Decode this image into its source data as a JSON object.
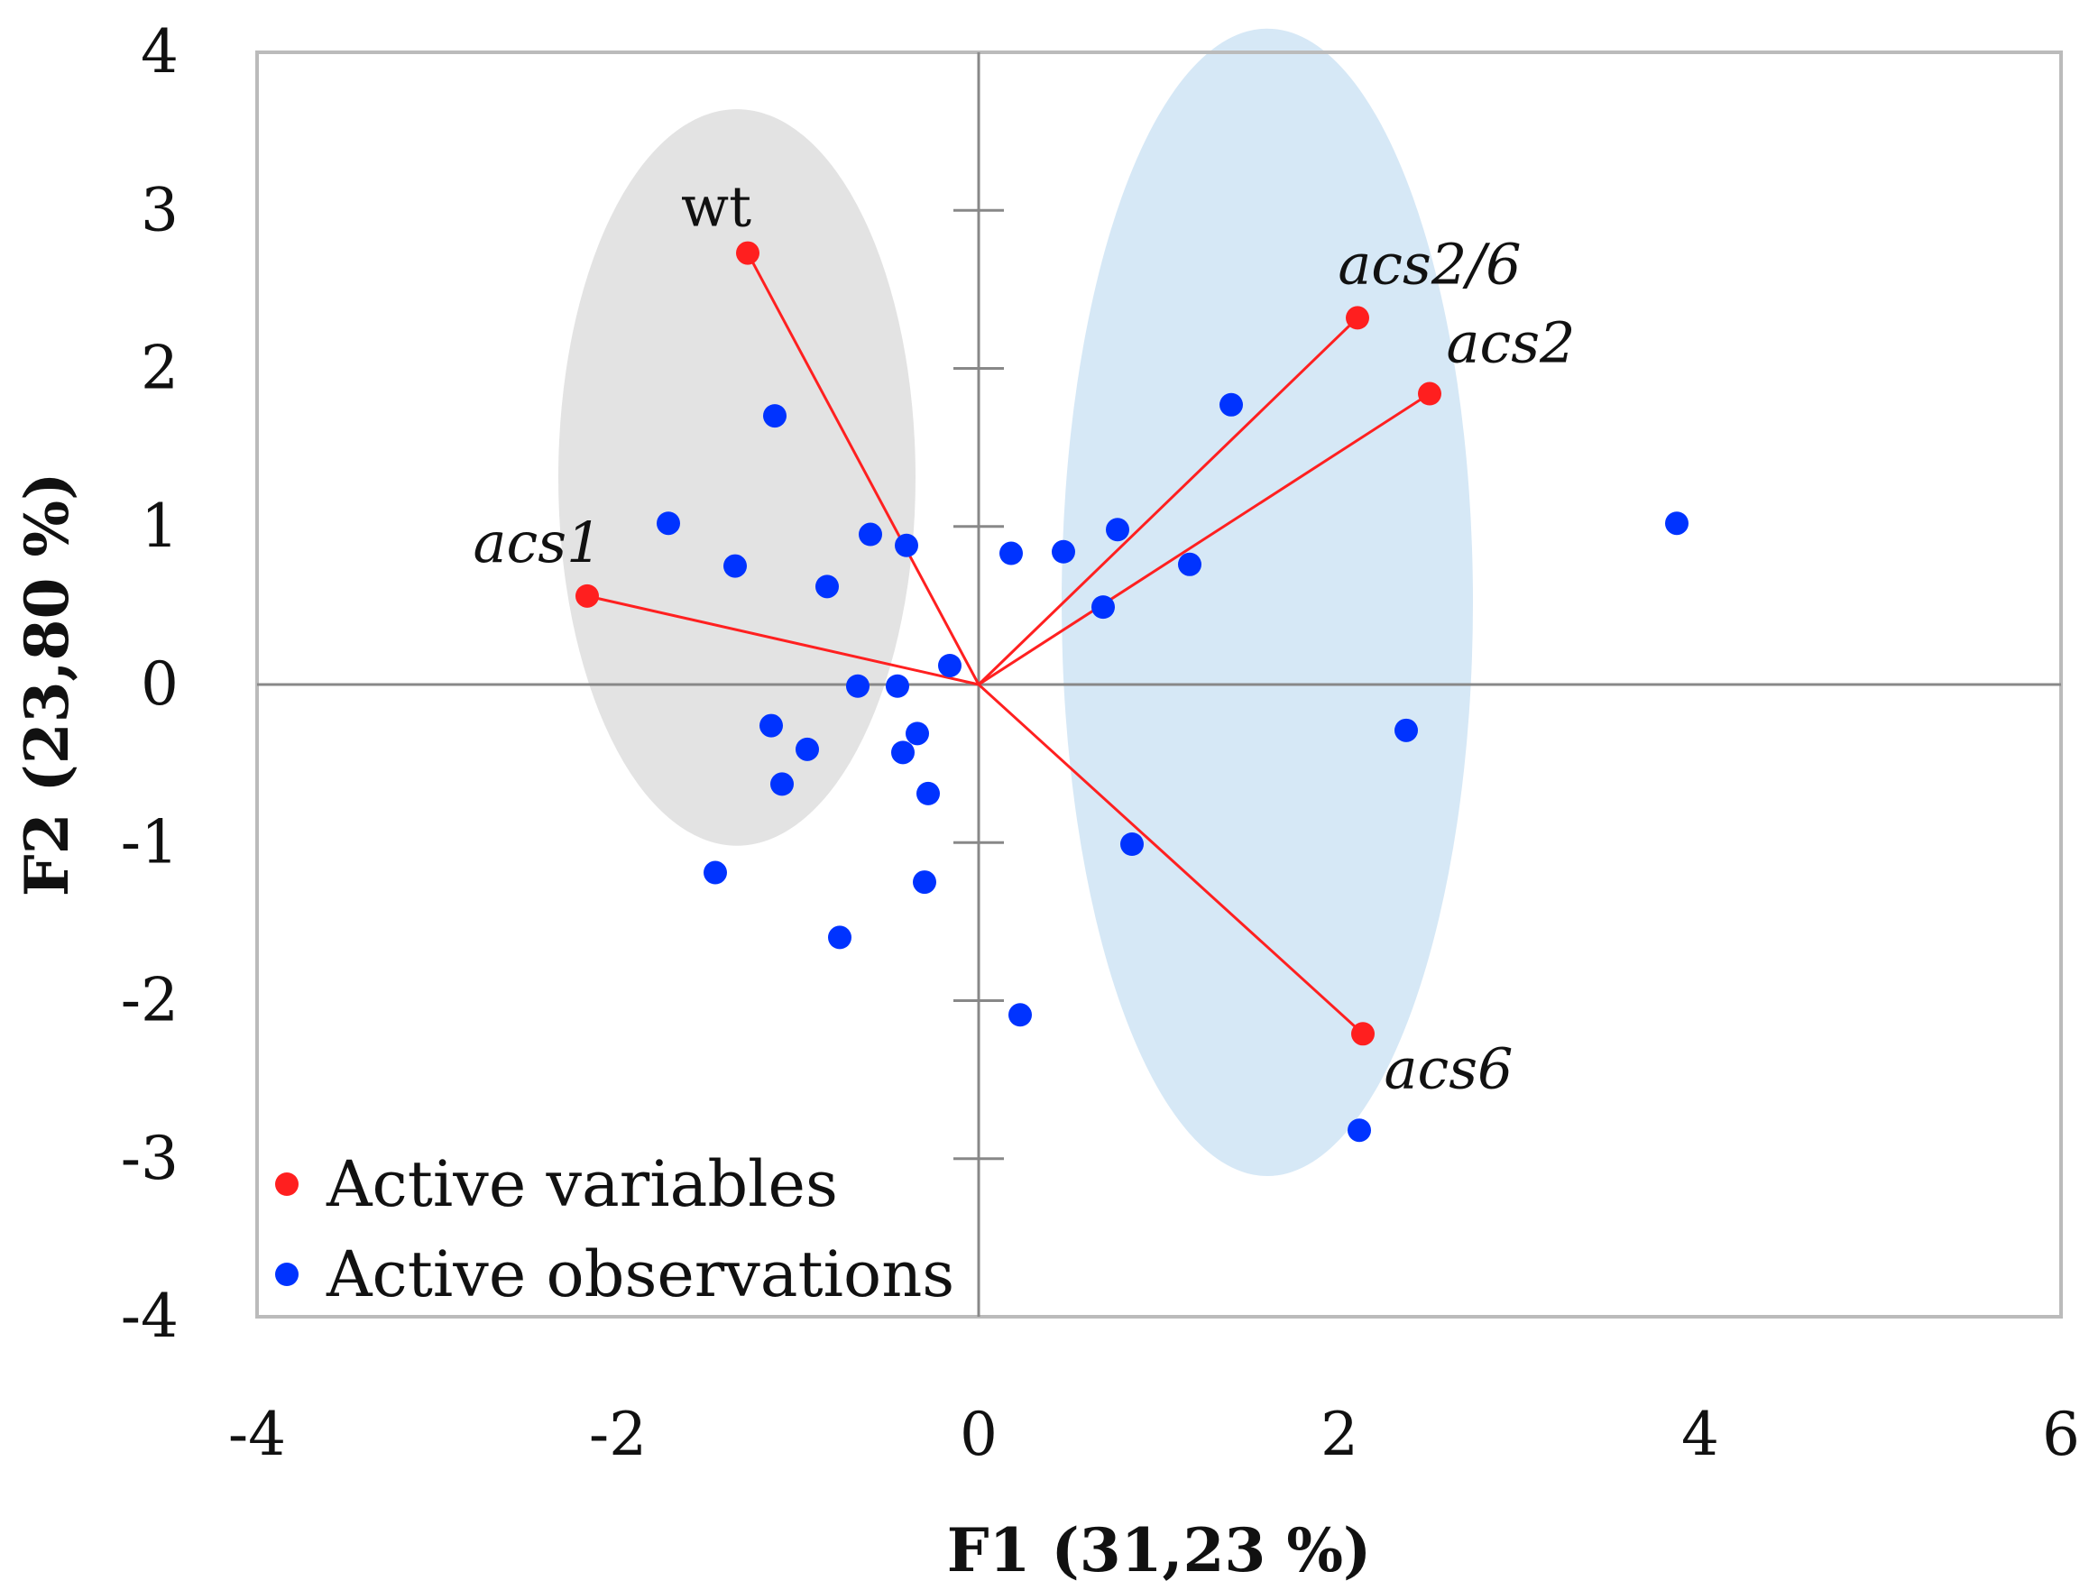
{
  "chart_data": {
    "type": "scatter",
    "subtype": "pca-biplot",
    "xlabel": "F1 (31,23 %)",
    "ylabel": "F2 (23,80 %)",
    "xlim": [
      -4,
      6
    ],
    "ylim": [
      -4,
      4
    ],
    "xticks": [
      -4,
      -2,
      0,
      2,
      4,
      6
    ],
    "yticks": [
      -4,
      -3,
      -2,
      -1,
      0,
      1,
      2,
      3,
      4
    ],
    "grid": false,
    "colors": {
      "variables": "#ff1f1f",
      "observations": "#0033ff",
      "vector": "#ff2020",
      "group_gray": "#e3e3e3",
      "group_blue": "#d6e8f6",
      "frame": "#bbbbbb",
      "axis": "#888888"
    },
    "legend": {
      "position": "bottom-left",
      "items": [
        {
          "label": "Active variables",
          "series": "variables"
        },
        {
          "label": "Active observations",
          "series": "observations"
        }
      ]
    },
    "variables": [
      {
        "label": "wt",
        "italic": false,
        "x": -1.28,
        "y": 2.73
      },
      {
        "label": "acs2/6",
        "italic": true,
        "x": 2.1,
        "y": 2.32
      },
      {
        "label": "acs2",
        "italic": true,
        "x": 2.5,
        "y": 1.84
      },
      {
        "label": "acs1",
        "italic": true,
        "x": -2.17,
        "y": 0.56
      },
      {
        "label": "acs6",
        "italic": true,
        "x": 2.13,
        "y": -2.21
      }
    ],
    "observations": [
      {
        "x": -1.13,
        "y": 1.7
      },
      {
        "x": -1.72,
        "y": 1.02
      },
      {
        "x": -1.35,
        "y": 0.75
      },
      {
        "x": -0.84,
        "y": 0.62
      },
      {
        "x": -0.6,
        "y": 0.95
      },
      {
        "x": -0.4,
        "y": 0.88
      },
      {
        "x": 0.18,
        "y": 0.83
      },
      {
        "x": 0.47,
        "y": 0.84
      },
      {
        "x": 0.77,
        "y": 0.98
      },
      {
        "x": 1.17,
        "y": 0.76
      },
      {
        "x": 0.69,
        "y": 0.49
      },
      {
        "x": 1.4,
        "y": 1.77
      },
      {
        "x": 3.87,
        "y": 1.02
      },
      {
        "x": -0.16,
        "y": 0.12
      },
      {
        "x": -0.67,
        "y": -0.01
      },
      {
        "x": -0.45,
        "y": -0.01
      },
      {
        "x": -1.15,
        "y": -0.26
      },
      {
        "x": -0.95,
        "y": -0.41
      },
      {
        "x": -0.42,
        "y": -0.43
      },
      {
        "x": -0.34,
        "y": -0.31
      },
      {
        "x": -1.09,
        "y": -0.63
      },
      {
        "x": -0.28,
        "y": -0.69
      },
      {
        "x": -1.46,
        "y": -1.19
      },
      {
        "x": -0.3,
        "y": -1.25
      },
      {
        "x": -0.77,
        "y": -1.6
      },
      {
        "x": 0.85,
        "y": -1.01
      },
      {
        "x": 2.37,
        "y": -0.29
      },
      {
        "x": 0.23,
        "y": -2.09
      },
      {
        "x": 2.11,
        "y": -2.82
      }
    ],
    "groups": [
      {
        "name": "gray-group",
        "cx": -1.34,
        "cy": 1.31,
        "rx": 0.99,
        "ry": 2.33
      },
      {
        "name": "blue-group",
        "cx": 1.6,
        "cy": 0.52,
        "rx": 1.14,
        "ry": 3.63
      }
    ]
  }
}
